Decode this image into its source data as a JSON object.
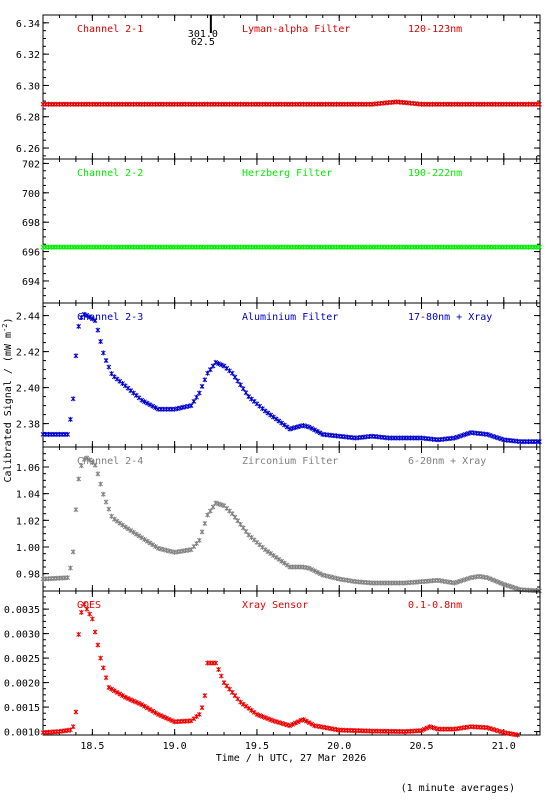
{
  "chart_data": {
    "type": "scatter",
    "xlabel": "Time / h UTC, 27 Mar 2026",
    "ylabel": "Calibrated Signal / (mW m",
    "ylabel_sup": "-2",
    "ylabel_close": ")",
    "footnote": "(1 minute averages)",
    "xlim": [
      18.2,
      21.22
    ],
    "xticks": [
      18.5,
      19.0,
      19.5,
      20.0,
      20.5,
      21.0
    ],
    "xtick_labels": [
      "18.5",
      "19.0",
      "19.5",
      "20.0",
      "20.5",
      "21.0"
    ],
    "marker": {
      "label_top": "301.0",
      "label_bottom": "62.5",
      "x": 19.22
    },
    "panels": [
      {
        "channel": "Channel 2-1",
        "filter": "Lyman-alpha Filter",
        "band": "120-123nm",
        "color": "#dd0000",
        "ylim": [
          6.253,
          6.345
        ],
        "yticks": [
          6.26,
          6.28,
          6.3,
          6.32,
          6.34
        ],
        "ytick_labels": [
          "6.26",
          "6.28",
          "6.30",
          "6.32",
          "6.34"
        ],
        "series": [
          {
            "x": [
              18.2,
              18.5,
              19.0,
              19.5,
              20.0,
              20.2,
              20.3,
              20.35,
              20.4,
              20.5,
              21.0,
              21.22
            ],
            "values": [
              6.288,
              6.288,
              6.288,
              6.288,
              6.288,
              6.288,
              6.289,
              6.2895,
              6.289,
              6.288,
              6.288,
              6.288
            ]
          }
        ]
      },
      {
        "channel": "Channel 2-2",
        "filter": "Herzberg Filter",
        "band": "190-222nm",
        "color": "#00ee00",
        "ylim": [
          692.5,
          702.3
        ],
        "yticks": [
          694,
          696,
          698,
          700,
          702
        ],
        "ytick_labels": [
          "694",
          "696",
          "698",
          "700",
          "702"
        ],
        "series": [
          {
            "x": [
              18.2,
              18.5,
              19.0,
              19.5,
              20.0,
              20.5,
              21.0,
              21.22
            ],
            "values": [
              696.3,
              696.3,
              696.3,
              696.3,
              696.3,
              696.3,
              696.3,
              696.3
            ]
          }
        ]
      },
      {
        "channel": "Channel 2-3",
        "filter": "Aluminium Filter",
        "band": "17-80nm + Xray",
        "color": "#0000cc",
        "ylim": [
          2.367,
          2.447
        ],
        "yticks": [
          2.38,
          2.4,
          2.42,
          2.44
        ],
        "ytick_labels": [
          "2.38",
          "2.40",
          "2.42",
          "2.44"
        ],
        "series": [
          {
            "x": [
              18.2,
              18.35,
              18.38,
              18.41,
              18.44,
              18.47,
              18.52,
              18.57,
              18.62,
              18.7,
              18.8,
              18.9,
              19.0,
              19.1,
              19.15,
              19.2,
              19.25,
              19.3,
              19.35,
              19.45,
              19.55,
              19.7,
              19.78,
              19.82,
              19.9,
              20.0,
              20.1,
              20.2,
              20.3,
              20.4,
              20.5,
              20.6,
              20.7,
              20.8,
              20.9,
              21.0,
              21.1,
              21.22
            ],
            "values": [
              2.374,
              2.374,
              2.389,
              2.432,
              2.441,
              2.44,
              2.437,
              2.418,
              2.407,
              2.401,
              2.393,
              2.388,
              2.388,
              2.39,
              2.397,
              2.408,
              2.414,
              2.412,
              2.408,
              2.395,
              2.387,
              2.377,
              2.379,
              2.378,
              2.374,
              2.373,
              2.372,
              2.373,
              2.372,
              2.372,
              2.372,
              2.371,
              2.372,
              2.375,
              2.374,
              2.371,
              2.37,
              2.37
            ]
          }
        ]
      },
      {
        "channel": "Channel 2-4",
        "filter": "Zirconium Filter",
        "band": "6-20nm + Xray",
        "color": "#808080",
        "ylim": [
          0.967,
          1.075
        ],
        "yticks": [
          0.98,
          1.0,
          1.02,
          1.04,
          1.06
        ],
        "ytick_labels": [
          "0.98",
          "1.00",
          "1.02",
          "1.04",
          "1.06"
        ],
        "series": [
          {
            "x": [
              18.2,
              18.35,
              18.38,
              18.41,
              18.44,
              18.47,
              18.52,
              18.57,
              18.62,
              18.7,
              18.8,
              18.9,
              19.0,
              19.1,
              19.15,
              19.2,
              19.25,
              19.3,
              19.35,
              19.45,
              19.55,
              19.7,
              19.78,
              19.82,
              19.9,
              20.0,
              20.1,
              20.2,
              20.3,
              20.4,
              20.5,
              20.6,
              20.7,
              20.8,
              20.85,
              20.9,
              21.0,
              21.1,
              21.22
            ],
            "values": [
              0.976,
              0.977,
              0.99,
              1.047,
              1.065,
              1.067,
              1.061,
              1.038,
              1.022,
              1.015,
              1.007,
              0.999,
              0.996,
              0.998,
              1.005,
              1.024,
              1.033,
              1.031,
              1.025,
              1.009,
              0.998,
              0.985,
              0.985,
              0.984,
              0.979,
              0.976,
              0.974,
              0.973,
              0.973,
              0.973,
              0.974,
              0.975,
              0.973,
              0.977,
              0.978,
              0.977,
              0.972,
              0.968,
              0.967
            ]
          }
        ]
      },
      {
        "channel": "GOES",
        "filter": "Xray Sensor",
        "band": "0.1-0.8nm",
        "color": "#ee0000",
        "ylim": [
          0.00093,
          0.00387
        ],
        "yticks": [
          0.001,
          0.0015,
          0.002,
          0.0025,
          0.003,
          0.0035
        ],
        "ytick_labels": [
          "0.0010",
          "0.0015",
          "0.0020",
          "0.0025",
          "0.0030",
          "0.0035"
        ],
        "series": [
          {
            "x": [
              18.2,
              18.3,
              18.38,
              18.4,
              18.42,
              18.45,
              18.5,
              18.55,
              18.6,
              18.7,
              18.8,
              18.9,
              19.0,
              19.1,
              19.15,
              19.18,
              19.2,
              19.25,
              19.3,
              19.4,
              19.5,
              19.6,
              19.7,
              19.78,
              19.85,
              20.0,
              20.2,
              20.4,
              20.5,
              20.55,
              20.6,
              20.7,
              20.8,
              20.9,
              21.0,
              21.1,
              21.22
            ],
            "values": [
              0.00098,
              0.001,
              0.00104,
              0.0014,
              0.0033,
              0.0036,
              0.0033,
              0.0025,
              0.0019,
              0.0017,
              0.00155,
              0.00135,
              0.0012,
              0.00122,
              0.00135,
              0.0016,
              0.0024,
              0.0024,
              0.002,
              0.0016,
              0.00135,
              0.00122,
              0.00112,
              0.00125,
              0.00112,
              0.00103,
              0.00101,
              0.001,
              0.00102,
              0.0011,
              0.00105,
              0.00105,
              0.0011,
              0.00108,
              0.00098,
              0.00092,
              0.00091
            ]
          }
        ]
      }
    ]
  }
}
